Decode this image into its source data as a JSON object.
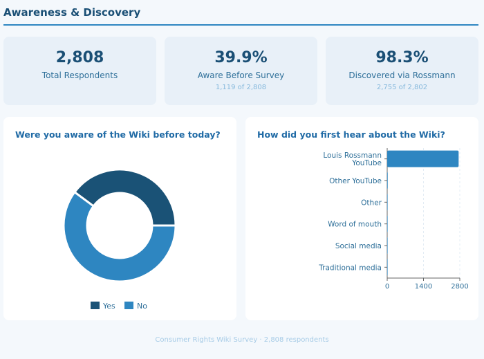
{
  "header": {
    "title": "Awareness & Discovery"
  },
  "kpis": [
    {
      "value": "2,808",
      "label": "Total Respondents",
      "sub": ""
    },
    {
      "value": "39.9%",
      "label": "Aware Before Survey",
      "sub": "1,119 of 2,808"
    },
    {
      "value": "98.3%",
      "label": "Discovered via Rossmann",
      "sub": "2,755 of 2,802"
    }
  ],
  "colors": {
    "dark": "#1a5276",
    "primary": "#2e86c1",
    "axis": "#666666"
  },
  "chart_data": [
    {
      "type": "pie",
      "title": "Were you aware of the Wiki before today?",
      "categories": [
        "Yes",
        "No"
      ],
      "values": [
        1119,
        1689
      ],
      "colors": [
        "#1a5276",
        "#2e86c1"
      ],
      "legend": "bottom"
    },
    {
      "type": "bar",
      "orientation": "horizontal",
      "title": "How did you first hear about the Wiki?",
      "categories": [
        "Louis Rossmann YouTube",
        "Other YouTube",
        "Other",
        "Word of mouth",
        "Social media",
        "Traditional media"
      ],
      "category_lines": [
        [
          "Louis Rossmann",
          "YouTube"
        ],
        [
          "Other YouTube"
        ],
        [
          "Other"
        ],
        [
          "Word of mouth"
        ],
        [
          "Social media"
        ],
        [
          "Traditional media"
        ]
      ],
      "values": [
        2755,
        20,
        12,
        8,
        5,
        2
      ],
      "xlim": [
        0,
        2800
      ],
      "xticks": [
        "0",
        "1400",
        "2800"
      ],
      "grid": true,
      "color": "#2e86c1"
    }
  ],
  "footer": {
    "text": "Consumer Rights Wiki Survey · 2,808 respondents"
  }
}
